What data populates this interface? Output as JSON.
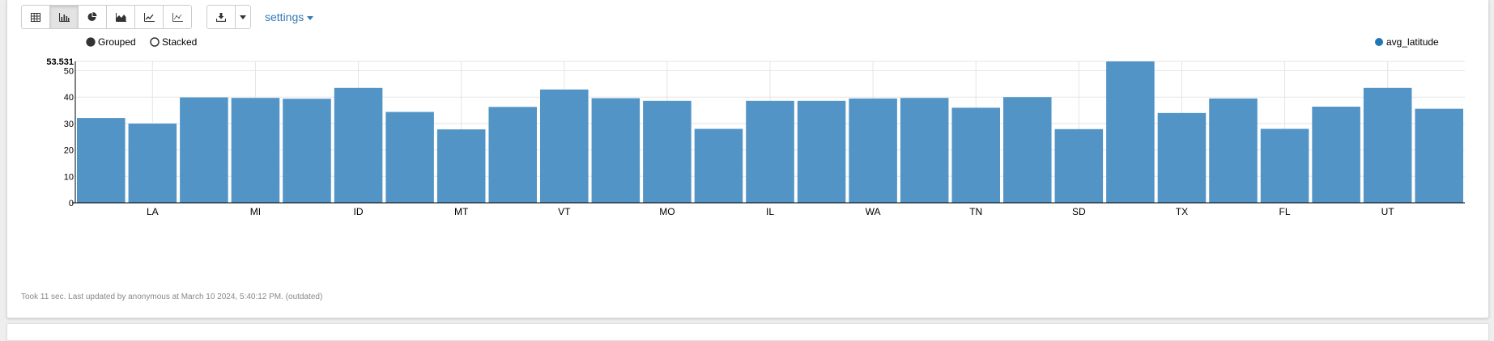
{
  "toolbar": {
    "view_buttons": [
      {
        "name": "table-view-button",
        "icon": "table-icon",
        "active": false
      },
      {
        "name": "bar-chart-view-button",
        "icon": "bar-chart-icon",
        "active": true
      },
      {
        "name": "pie-chart-view-button",
        "icon": "pie-chart-icon",
        "active": false
      },
      {
        "name": "area-chart-view-button",
        "icon": "area-chart-icon",
        "active": false
      },
      {
        "name": "line-chart-view-button",
        "icon": "line-chart-icon",
        "active": false
      },
      {
        "name": "scatter-chart-view-button",
        "icon": "scatter-chart-icon",
        "active": false
      }
    ],
    "download_icon": "download-icon",
    "settings_label": "settings"
  },
  "chart_data": {
    "type": "bar",
    "controls": {
      "grouped_label": "Grouped",
      "stacked_label": "Stacked",
      "selected": "Grouped"
    },
    "series": [
      {
        "name": "avg_latitude",
        "color": "#5294c6",
        "values": [
          32.1,
          30.0,
          39.9,
          39.7,
          39.4,
          43.5,
          34.4,
          27.8,
          36.3,
          42.9,
          39.6,
          38.6,
          28.0,
          38.6,
          38.6,
          39.5,
          39.7,
          36.0,
          40.0,
          27.9,
          53.531,
          34.0,
          39.5,
          28.0,
          36.4,
          43.5,
          35.6
        ]
      }
    ],
    "categories": [
      "",
      "LA",
      "",
      "MI",
      "",
      "ID",
      "",
      "MT",
      "",
      "VT",
      "",
      "MO",
      "",
      "IL",
      "",
      "WA",
      "",
      "TN",
      "",
      "SD",
      "",
      "TX",
      "",
      "FL",
      "",
      "UT",
      ""
    ],
    "y_ticks": [
      "0",
      "10",
      "20",
      "30",
      "40",
      "50"
    ],
    "y_max_label": "53.531",
    "ylim": [
      0,
      53.531
    ],
    "grid": true,
    "legend_position": "top-right",
    "xlabel": "",
    "ylabel": ""
  },
  "footer": {
    "text": "Took 11 sec. Last updated by anonymous at March 10 2024, 5:40:12 PM. (outdated)"
  }
}
